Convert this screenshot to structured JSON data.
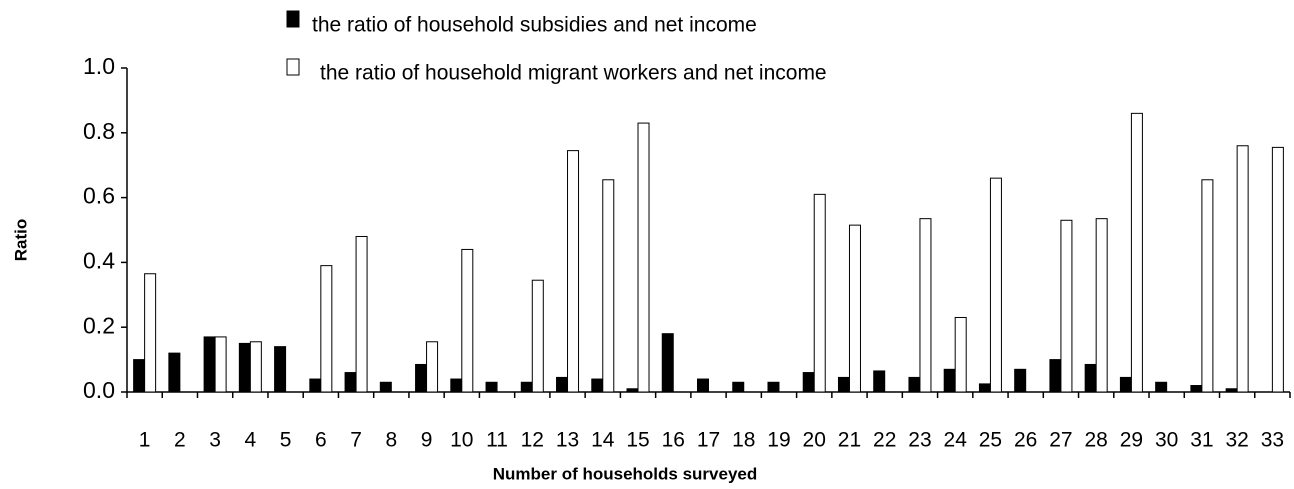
{
  "chart_data": {
    "type": "bar",
    "x_label": "Number of households surveyed",
    "y_label": "Ratio",
    "categories": [
      "1",
      "2",
      "3",
      "4",
      "5",
      "6",
      "7",
      "8",
      "9",
      "10",
      "11",
      "12",
      "13",
      "14",
      "15",
      "16",
      "17",
      "18",
      "19",
      "20",
      "21",
      "22",
      "23",
      "24",
      "25",
      "26",
      "27",
      "28",
      "29",
      "30",
      "31",
      "32",
      "33"
    ],
    "series": [
      {
        "name": "the ratio of household subsidies and net income",
        "color": "#000000",
        "values": [
          0.1,
          0.12,
          0.17,
          0.15,
          0.14,
          0.04,
          0.06,
          0.03,
          0.085,
          0.04,
          0.03,
          0.03,
          0.045,
          0.04,
          0.01,
          0.18,
          0.04,
          0.03,
          0.03,
          0.06,
          0.045,
          0.065,
          0.045,
          0.07,
          0.025,
          0.07,
          0.1,
          0.085,
          0.045,
          0.03,
          0.02,
          0.01,
          0
        ]
      },
      {
        "name": "the ratio of household migrant workers and net income",
        "color": "#ffffff",
        "values": [
          0.365,
          0,
          0.17,
          0.155,
          0,
          0.39,
          0.48,
          0,
          0.155,
          0.44,
          0,
          0.345,
          0.745,
          0.655,
          0.83,
          0,
          0,
          0,
          0,
          0.61,
          0.515,
          0,
          0.535,
          0.23,
          0.66,
          0,
          0.53,
          0.535,
          0.86,
          0,
          0.655,
          0.76,
          0.755
        ]
      }
    ],
    "ylim": [
      0,
      1
    ],
    "yticks": [
      {
        "value": 0,
        "label": "0.0"
      },
      0.2,
      0.4,
      0.6,
      0.8,
      {
        "value": 1,
        "label": "1.0"
      }
    ],
    "grid": false,
    "legend": "top"
  }
}
